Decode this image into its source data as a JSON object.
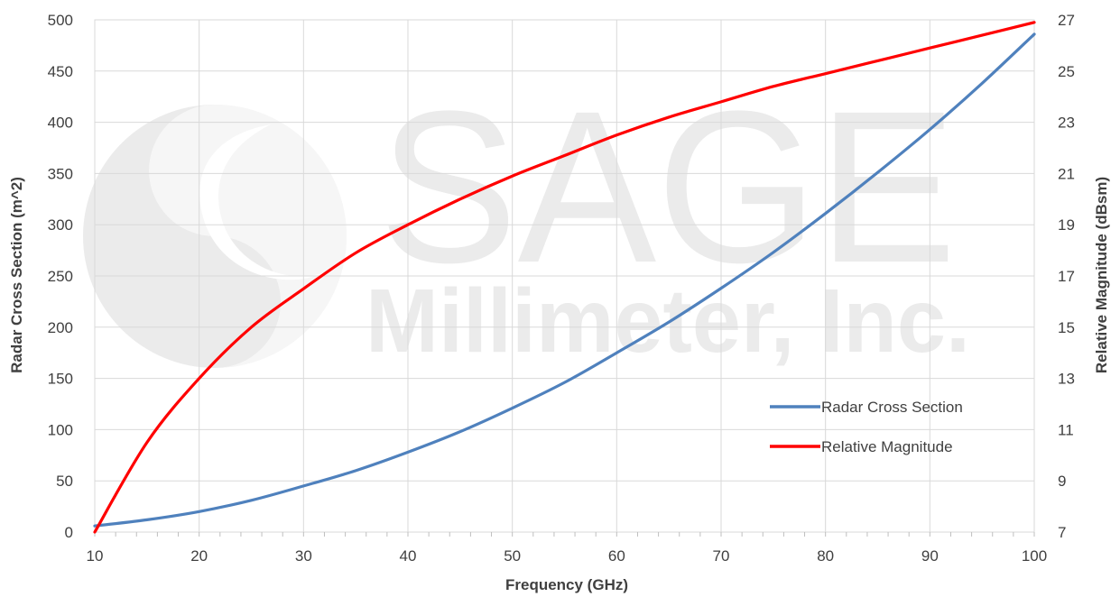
{
  "watermark": {
    "line1": "SAGE",
    "line2": "Millimeter, Inc."
  },
  "chart_data": {
    "type": "line",
    "xlabel": "Frequency (GHz)",
    "ylabel": "Radar Cross Section (m^2)",
    "y2label": "Relative Magnitude (dBsm)",
    "xlim": [
      10,
      100
    ],
    "ylim": [
      0,
      500
    ],
    "y2lim": [
      7,
      27
    ],
    "xticks": [
      10,
      20,
      30,
      40,
      50,
      60,
      70,
      80,
      90,
      100
    ],
    "yticks": [
      0,
      50,
      100,
      150,
      200,
      250,
      300,
      350,
      400,
      450,
      500
    ],
    "y2ticks": [
      7,
      9,
      11,
      13,
      15,
      17,
      19,
      21,
      23,
      25,
      27
    ],
    "grid": true,
    "legend_position": "bottom-right",
    "series": [
      {
        "name": "Radar Cross Section",
        "axis": "left",
        "color": "#4f81bd",
        "x": [
          10,
          15,
          20,
          25,
          30,
          35,
          40,
          45,
          50,
          55,
          60,
          65,
          70,
          75,
          80,
          85,
          90,
          95,
          100
        ],
        "values": [
          6,
          12,
          20,
          31,
          45,
          60,
          78,
          98,
          121,
          146,
          175,
          205,
          238,
          273,
          311,
          351,
          393,
          438,
          486
        ]
      },
      {
        "name": "Relative Magnitude",
        "axis": "right",
        "color": "#ff0000",
        "x": [
          10,
          15,
          20,
          25,
          30,
          35,
          40,
          45,
          50,
          55,
          60,
          65,
          70,
          75,
          80,
          85,
          90,
          95,
          100
        ],
        "values": [
          7.0,
          10.5,
          13.0,
          15.0,
          16.5,
          17.9,
          19.0,
          20.0,
          20.9,
          21.7,
          22.5,
          23.2,
          23.8,
          24.4,
          24.9,
          25.4,
          25.9,
          26.4,
          26.9
        ]
      }
    ]
  }
}
